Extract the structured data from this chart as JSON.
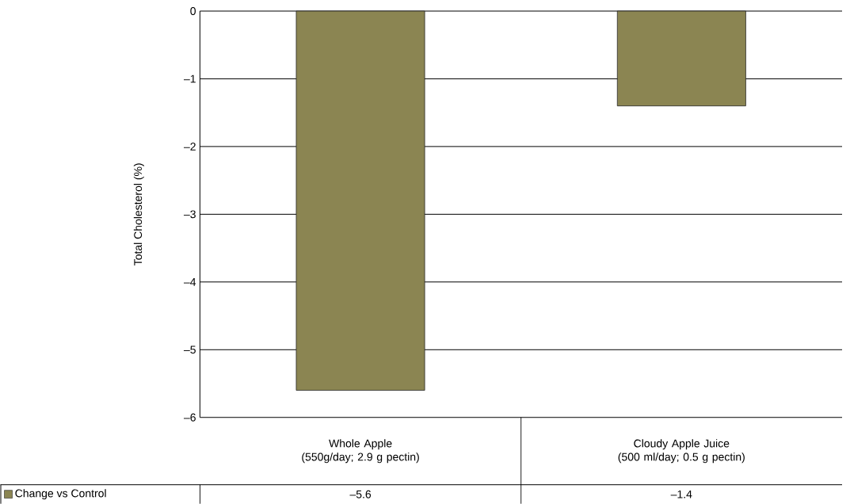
{
  "chart_data": {
    "type": "bar",
    "ylabel": "Total Cholesterol (%)",
    "categories": [
      "Whole Apple\n(550g/day; 2.9 g pectin)",
      "Cloudy Apple Juice\n(500 ml/day; 0.5 g pectin)"
    ],
    "series": [
      {
        "name": "Change vs Control",
        "color": "#8b8552",
        "values": [
          -5.6,
          -1.4
        ],
        "value_labels": [
          "–5.6",
          "–1.4"
        ]
      }
    ],
    "ylim": [
      -6,
      0
    ],
    "yticks": [
      {
        "value": -6,
        "label": "–6"
      },
      {
        "value": -5,
        "label": "–5"
      },
      {
        "value": -4,
        "label": "–4"
      },
      {
        "value": -3,
        "label": "–3"
      },
      {
        "value": -2,
        "label": "–2"
      },
      {
        "value": -1,
        "label": "–1"
      },
      0
    ],
    "grid": "y",
    "legend": "bottom"
  }
}
